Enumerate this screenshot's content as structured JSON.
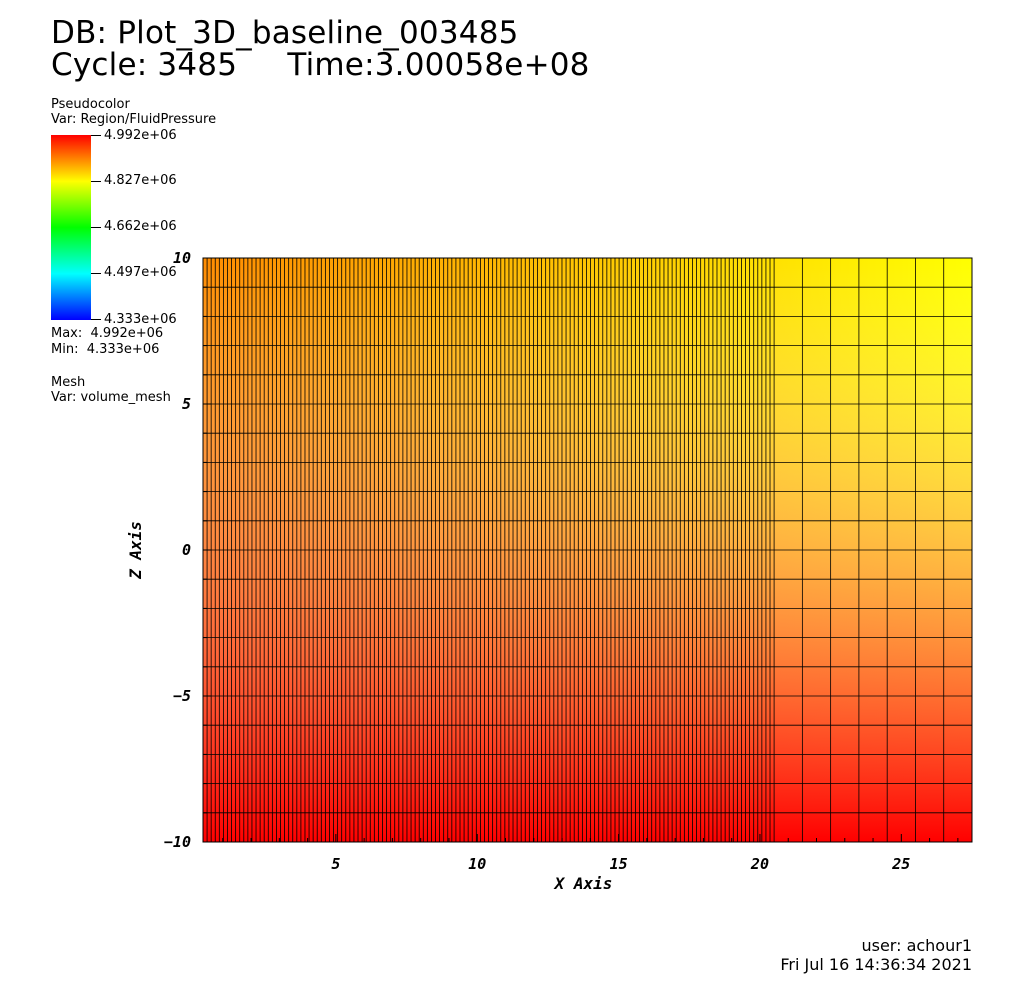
{
  "header": {
    "db_line": "DB: Plot_3D_baseline_003485",
    "cycle_label": "Cycle: 3485",
    "time_label": "Time:3.00058e+08"
  },
  "legend": {
    "pseudocolor_title": "Pseudocolor",
    "pseudocolor_var": "Var: Region/FluidPressure",
    "ticks": [
      "4.992e+06",
      "4.827e+06",
      "4.662e+06",
      "4.497e+06",
      "4.333e+06"
    ],
    "max_label": "Max:  4.992e+06",
    "min_label": "Min:  4.333e+06",
    "mesh_title": "Mesh",
    "mesh_var": "Var: volume_mesh"
  },
  "footer": {
    "user": "user: achour1",
    "date": "Fri Jul 16 14:36:34 2021"
  },
  "colors": {
    "colormap": [
      "#0000ff",
      "#00ffff",
      "#00ff00",
      "#ffff00",
      "#ff0000"
    ],
    "field_low": "#ff0000",
    "field_mid": "#ff8c00",
    "field_high": "#ffff00",
    "mesh_line": "#000000"
  },
  "chart_data": {
    "type": "heatmap",
    "variable": "Region/FluidPressure",
    "xlabel": "X Axis",
    "ylabel": "Z Axis",
    "xlim": [
      0.3,
      27.5
    ],
    "ylim": [
      -10,
      10
    ],
    "x_ticks": [
      5,
      10,
      15,
      20,
      25
    ],
    "y_ticks": [
      -10,
      -5,
      0,
      5,
      10
    ],
    "x_tick_labels": [
      "5",
      "10",
      "15",
      "20",
      "25"
    ],
    "y_tick_labels": [
      "−10",
      "−5",
      "0",
      "5",
      "10"
    ],
    "value_range": [
      4333000,
      4992000
    ],
    "field_corners": {
      "bottom_left": 4992000,
      "bottom_right": 4992000,
      "top_left": 4910000,
      "top_right": 4827000
    },
    "mesh": {
      "fine_region_x": [
        0.3,
        20.5
      ],
      "fine_cell_count": 140,
      "coarse_region_x": [
        20.5,
        27.5
      ],
      "coarse_cell_count": 7,
      "z_cell_count": 20
    },
    "grid": true
  }
}
